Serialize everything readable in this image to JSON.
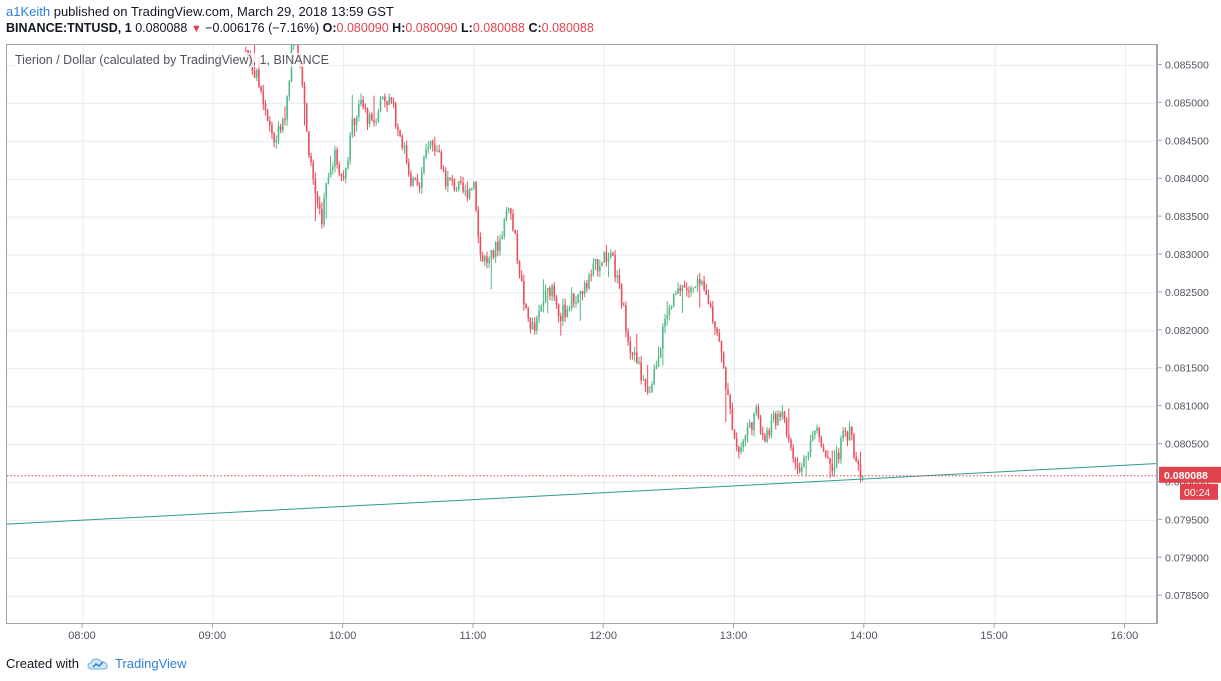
{
  "header": {
    "author": "a1Keith",
    "published_text": "published on TradingView.com, March 29, 2018 13:59 GST",
    "symbol": "BINANCE:TNTUSD, 1",
    "last": "0.080088",
    "change": "−0.006176 (−7.16%)",
    "o_label": "O:",
    "o_value": "0.080090",
    "h_label": "H:",
    "h_value": "0.080090",
    "l_label": "L:",
    "l_value": "0.080088",
    "c_label": "C:",
    "c_value": "0.080088"
  },
  "legend": "Tierion / Dollar (calculated by TradingView), 1, BINANCE",
  "price_tag": {
    "value": "0.080088",
    "countdown": "00:24"
  },
  "footer": {
    "created_with": "Created with",
    "brand": "TradingView"
  },
  "colors": {
    "up": "#53b987",
    "down": "#eb4d5c",
    "trendline": "#2d9b8a",
    "grid": "#e6ecf0",
    "price_line": "#e0434e"
  },
  "chart_data": {
    "type": "candlestick",
    "title": "Tierion / Dollar (calculated by TradingView), 1, BINANCE",
    "x_ticks": [
      "08:00",
      "09:00",
      "10:00",
      "11:00",
      "12:00",
      "13:00",
      "14:00",
      "15:00",
      "16:00"
    ],
    "y_ticks": [
      "0.085500",
      "0.085000",
      "0.084500",
      "0.084000",
      "0.083500",
      "0.083000",
      "0.082500",
      "0.082000",
      "0.081500",
      "0.081000",
      "0.080500",
      "0.080000",
      "0.079500",
      "0.079000",
      "0.078500"
    ],
    "x_range": [
      "07:25",
      "16:15"
    ],
    "y_range": [
      0.07812,
      0.08577
    ],
    "last_price": 0.080088,
    "trendline": [
      [
        "07:25",
        0.07945
      ],
      [
        "16:15",
        0.08025
      ]
    ],
    "price_path": [
      [
        "09:15",
        0.0857
      ],
      [
        "09:22",
        0.0852
      ],
      [
        "09:28",
        0.0845
      ],
      [
        "09:33",
        0.0848
      ],
      [
        "09:37",
        0.086
      ],
      [
        "09:40",
        0.0856
      ],
      [
        "09:43",
        0.0846
      ],
      [
        "09:47",
        0.0838
      ],
      [
        "09:50",
        0.0835
      ],
      [
        "09:53",
        0.0841
      ],
      [
        "09:56",
        0.0843
      ],
      [
        "10:00",
        0.084
      ],
      [
        "10:04",
        0.0847
      ],
      [
        "10:08",
        0.085
      ],
      [
        "10:13",
        0.0847
      ],
      [
        "10:18",
        0.0851
      ],
      [
        "10:22",
        0.085
      ],
      [
        "10:27",
        0.0845
      ],
      [
        "10:31",
        0.084
      ],
      [
        "10:35",
        0.0839
      ],
      [
        "10:39",
        0.0845
      ],
      [
        "10:43",
        0.0844
      ],
      [
        "10:47",
        0.084
      ],
      [
        "10:52",
        0.0839
      ],
      [
        "10:56",
        0.0838
      ],
      [
        "11:00",
        0.084
      ],
      [
        "11:03",
        0.083
      ],
      [
        "11:07",
        0.0829
      ],
      [
        "11:12",
        0.0832
      ],
      [
        "11:16",
        0.0837
      ],
      [
        "11:20",
        0.083
      ],
      [
        "11:24",
        0.0822
      ],
      [
        "11:28",
        0.082
      ],
      [
        "11:32",
        0.0824
      ],
      [
        "11:36",
        0.0826
      ],
      [
        "11:40",
        0.0822
      ],
      [
        "11:45",
        0.0824
      ],
      [
        "11:50",
        0.0825
      ],
      [
        "11:55",
        0.0828
      ],
      [
        "12:00",
        0.083
      ],
      [
        "12:04",
        0.0829
      ],
      [
        "12:08",
        0.0824
      ],
      [
        "12:12",
        0.0818
      ],
      [
        "12:16",
        0.0815
      ],
      [
        "12:20",
        0.0811
      ],
      [
        "12:24",
        0.0816
      ],
      [
        "12:28",
        0.0821
      ],
      [
        "12:32",
        0.0824
      ],
      [
        "12:36",
        0.0826
      ],
      [
        "12:40",
        0.0825
      ],
      [
        "12:44",
        0.0826
      ],
      [
        "12:48",
        0.0824
      ],
      [
        "12:52",
        0.082
      ],
      [
        "12:55",
        0.0815
      ],
      [
        "12:58",
        0.0809
      ],
      [
        "13:02",
        0.0804
      ],
      [
        "13:06",
        0.0807
      ],
      [
        "13:10",
        0.0809
      ],
      [
        "13:14",
        0.0806
      ],
      [
        "13:18",
        0.0808
      ],
      [
        "13:22",
        0.081
      ],
      [
        "13:26",
        0.0804
      ],
      [
        "13:30",
        0.0801
      ],
      [
        "13:34",
        0.0805
      ],
      [
        "13:38",
        0.0807
      ],
      [
        "13:42",
        0.0804
      ],
      [
        "13:46",
        0.0802
      ],
      [
        "13:50",
        0.0806
      ],
      [
        "13:53",
        0.0807
      ],
      [
        "13:56",
        0.0803
      ],
      [
        "13:59",
        0.08009
      ]
    ]
  }
}
